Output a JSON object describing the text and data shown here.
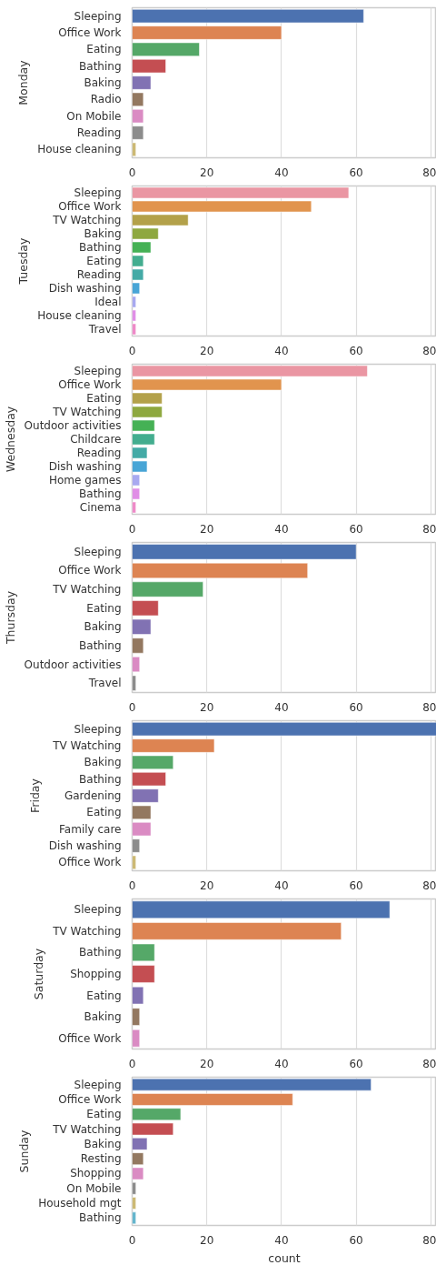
{
  "chart_data": [
    {
      "type": "bar",
      "orientation": "horizontal",
      "ylabel": "Monday",
      "categories": [
        "Sleeping",
        "Office Work",
        "Eating",
        "Bathing",
        "Baking",
        "Radio",
        "On Mobile",
        "Reading",
        "House cleaning"
      ],
      "values": [
        62,
        40,
        18,
        9,
        5,
        3,
        3,
        3,
        1
      ],
      "colors": [
        "#4c72b0",
        "#dd8452",
        "#55a868",
        "#c44e52",
        "#8172b3",
        "#937860",
        "#da8bc3",
        "#8c8c8c",
        "#ccb974"
      ],
      "xlim": [
        0,
        81.5
      ],
      "xticks": [
        0,
        20,
        40,
        60,
        80
      ],
      "grid": "x"
    },
    {
      "type": "bar",
      "orientation": "horizontal",
      "ylabel": "Tuesday",
      "categories": [
        "Sleeping",
        "Office Work",
        "TV Watching",
        "Baking",
        "Bathing",
        "Eating",
        "Reading",
        "Dish washing",
        "Ideal",
        "House cleaning",
        "Travel"
      ],
      "values": [
        58,
        48,
        15,
        7,
        5,
        3,
        3,
        2,
        1,
        1,
        1
      ],
      "colors": [
        "#ea96a3",
        "#e1944e",
        "#b3a14a",
        "#8ea83f",
        "#45b155",
        "#43ad8f",
        "#44aaa6",
        "#48a5d6",
        "#a8a9f0",
        "#e08ee6",
        "#ee8ac8"
      ],
      "xlim": [
        0,
        81.5
      ],
      "xticks": [
        0,
        20,
        40,
        60,
        80
      ],
      "grid": "x"
    },
    {
      "type": "bar",
      "orientation": "horizontal",
      "ylabel": "Wednesday",
      "categories": [
        "Sleeping",
        "Office Work",
        "Eating",
        "TV Watching",
        "Outdoor activities",
        "Childcare",
        "Reading",
        "Dish washing",
        "Home games",
        "Bathing",
        "Cinema"
      ],
      "values": [
        63,
        40,
        8,
        8,
        6,
        6,
        4,
        4,
        2,
        2,
        1
      ],
      "colors": [
        "#ea96a3",
        "#e1944e",
        "#b3a14a",
        "#8ea83f",
        "#45b155",
        "#43ad8f",
        "#44aaa6",
        "#48a5d6",
        "#a8a9f0",
        "#e08ee6",
        "#ee8ac8"
      ],
      "xlim": [
        0,
        81.5
      ],
      "xticks": [
        0,
        20,
        40,
        60,
        80
      ],
      "grid": "x"
    },
    {
      "type": "bar",
      "orientation": "horizontal",
      "ylabel": "Thursday",
      "categories": [
        "Sleeping",
        "Office Work",
        "TV Watching",
        "Eating",
        "Baking",
        "Bathing",
        "Outdoor activities",
        "Travel"
      ],
      "values": [
        60,
        47,
        19,
        7,
        5,
        3,
        2,
        1
      ],
      "colors": [
        "#4c72b0",
        "#dd8452",
        "#55a868",
        "#c44e52",
        "#8172b3",
        "#937860",
        "#da8bc3",
        "#8c8c8c"
      ],
      "xlim": [
        0,
        81.5
      ],
      "xticks": [
        0,
        20,
        40,
        60,
        80
      ],
      "grid": "x"
    },
    {
      "type": "bar",
      "orientation": "horizontal",
      "ylabel": "Friday",
      "categories": [
        "Sleeping",
        "TV Watching",
        "Baking",
        "Bathing",
        "Gardening",
        "Eating",
        "Family care",
        "Dish washing",
        "Office Work"
      ],
      "values": [
        81.5,
        22,
        11,
        9,
        7,
        5,
        5,
        2,
        1
      ],
      "colors": [
        "#4c72b0",
        "#dd8452",
        "#55a868",
        "#c44e52",
        "#8172b3",
        "#937860",
        "#da8bc3",
        "#8c8c8c",
        "#ccb974"
      ],
      "xlim": [
        0,
        81.5
      ],
      "xticks": [
        0,
        20,
        40,
        60,
        80
      ],
      "grid": "x"
    },
    {
      "type": "bar",
      "orientation": "horizontal",
      "ylabel": "Saturday",
      "categories": [
        "Sleeping",
        "TV Watching",
        "Bathing",
        "Shopping",
        "Eating",
        "Baking",
        "Office Work"
      ],
      "values": [
        69,
        56,
        6,
        6,
        3,
        2,
        2
      ],
      "colors": [
        "#4c72b0",
        "#dd8452",
        "#55a868",
        "#c44e52",
        "#8172b3",
        "#937860",
        "#da8bc3"
      ],
      "xlim": [
        0,
        81.5
      ],
      "xticks": [
        0,
        20,
        40,
        60,
        80
      ],
      "grid": "x"
    },
    {
      "type": "bar",
      "orientation": "horizontal",
      "ylabel": "Sunday",
      "xlabel": "count",
      "categories": [
        "Sleeping",
        "Office Work",
        "Eating",
        "TV Watching",
        "Baking",
        "Resting",
        "Shopping",
        "On Mobile",
        "Household mgt",
        "Bathing"
      ],
      "values": [
        64,
        43,
        13,
        11,
        4,
        3,
        3,
        1,
        1,
        1
      ],
      "colors": [
        "#4c72b0",
        "#dd8452",
        "#55a868",
        "#c44e52",
        "#8172b3",
        "#937860",
        "#da8bc3",
        "#8c8c8c",
        "#ccb974",
        "#64b5cd"
      ],
      "xlim": [
        0,
        81.5
      ],
      "xticks": [
        0,
        20,
        40,
        60,
        80
      ],
      "grid": "x"
    }
  ]
}
